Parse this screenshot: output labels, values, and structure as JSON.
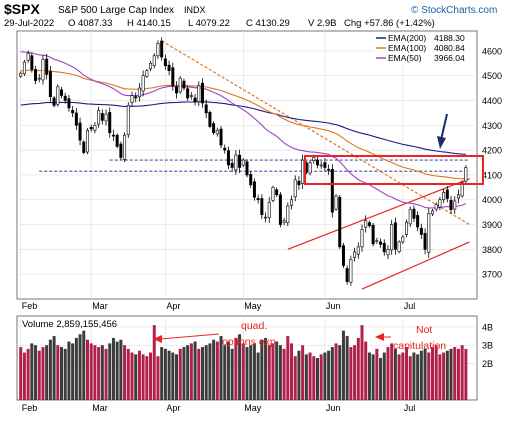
{
  "header": {
    "symbol": "$SPX",
    "name": "S&P 500 Large Cap Index",
    "exchange": "INDX",
    "date": "29-Jul-2022",
    "open": "O 4087.33",
    "high": "H 4140.15",
    "low": "L 4079.22",
    "close": "C 4130.29",
    "volume": "V 2.9B",
    "change": "Chg +57.86 (+1.42%)",
    "copyright": "© StockCharts.com"
  },
  "colors": {
    "up_candle": "#ffffff",
    "down_candle": "#000000",
    "ema200": "#1c1c8c",
    "ema100": "#e07820",
    "ema50": "#9b45c8",
    "trend": "#ee2222",
    "vol_up": "#b0204a",
    "vol_down": "#3c3c3c"
  },
  "chart_data": [
    {
      "type": "candlestick",
      "legend": [
        {
          "name": "EMA(200)",
          "value": "4188.30",
          "color": "#1c1c8c"
        },
        {
          "name": "EMA(100)",
          "value": "4080.84",
          "color": "#e07820"
        },
        {
          "name": "EMA(50)",
          "value": "3966.04",
          "color": "#9b45c8"
        }
      ],
      "x_ticks": [
        "Feb",
        "Mar",
        "Apr",
        "May",
        "Jun",
        "Jul"
      ],
      "x_tick_pos": [
        0,
        19,
        39,
        60,
        82,
        103
      ],
      "y_ticks": [
        3700,
        3800,
        3900,
        4000,
        4100,
        4200,
        4300,
        4400,
        4500,
        4600
      ],
      "ylim": [
        3600,
        4680
      ],
      "xlim": [
        -1,
        123
      ],
      "close": [
        4510,
        4555,
        4590,
        4525,
        4480,
        4490,
        4565,
        4505,
        4415,
        4380,
        4455,
        4420,
        4400,
        4370,
        4350,
        4300,
        4240,
        4190,
        4280,
        4285,
        4300,
        4360,
        4320,
        4345,
        4270,
        4260,
        4215,
        4170,
        4260,
        4380,
        4420,
        4410,
        4450,
        4500,
        4520,
        4550,
        4580,
        4630,
        4575,
        4540,
        4520,
        4460,
        4430,
        4490,
        4450,
        4410,
        4420,
        4395,
        4460,
        4390,
        4350,
        4295,
        4270,
        4280,
        4220,
        4200,
        4140,
        4130,
        4180,
        4130,
        4160,
        4100,
        4060,
        4010,
        4000,
        3940,
        3930,
        3990,
        4050,
        4020,
        3900,
        3915,
        3975,
        4000,
        4080,
        4060,
        4160,
        4110,
        4150,
        4170,
        4140,
        4140,
        4130,
        4120,
        3950,
        4015,
        3810,
        3735,
        3670,
        3760,
        3790,
        3810,
        3880,
        3915,
        3895,
        3822,
        3835,
        3820,
        3790,
        3800,
        3900,
        3800,
        3830,
        3850,
        3910,
        3960,
        3925,
        3890,
        3860,
        3800,
        3945,
        3955,
        3980,
        4000,
        4030,
        4005,
        3960,
        3995,
        4020,
        4070,
        4130
      ],
      "volume_ticks": [
        "2B",
        "3B",
        "4B"
      ],
      "volume_ylim": [
        0,
        4.6
      ],
      "volume_legend": "Volume 2,859,155,456",
      "volume": [
        2.9,
        2.6,
        2.8,
        3.1,
        3.0,
        2.7,
        2.9,
        3.0,
        3.3,
        3.5,
        3.0,
        2.9,
        2.8,
        3.2,
        3.1,
        3.4,
        3.6,
        3.8,
        3.3,
        3.1,
        3.0,
        2.9,
        3.0,
        2.8,
        3.1,
        3.4,
        3.2,
        3.3,
        3.0,
        2.8,
        2.6,
        2.5,
        2.7,
        2.5,
        2.4,
        2.6,
        4.1,
        2.4,
        2.9,
        2.8,
        2.7,
        2.6,
        2.5,
        2.8,
        2.9,
        3.0,
        3.1,
        3.2,
        2.8,
        2.9,
        3.0,
        3.1,
        3.3,
        3.2,
        3.5,
        3.0,
        3.2,
        2.8,
        3.4,
        3.6,
        3.1,
        2.9,
        3.0,
        3.1,
        2.6,
        3.3,
        3.4,
        3.0,
        3.1,
        3.2,
        3.0,
        2.8,
        3.5,
        3.1,
        2.4,
        2.7,
        3.0,
        2.5,
        2.6,
        2.4,
        2.3,
        2.5,
        2.6,
        2.7,
        2.9,
        3.1,
        3.0,
        3.8,
        3.5,
        2.9,
        3.0,
        3.4,
        4.1,
        3.2,
        2.6,
        2.5,
        2.8,
        2.3,
        2.6,
        2.9,
        3.1,
        2.8,
        2.5,
        2.6,
        2.9,
        2.4,
        2.6,
        2.5,
        2.7,
        2.8,
        2.6,
        2.9,
        3.0,
        2.5,
        2.6,
        2.7,
        2.8,
        2.9,
        2.8,
        3.0,
        2.8
      ],
      "annotations": [
        {
          "text": "quad.",
          "text2": "options exp.",
          "target": "volume"
        },
        {
          "text": "Not",
          "text2": "capitulation",
          "target": "volume"
        }
      ]
    }
  ]
}
